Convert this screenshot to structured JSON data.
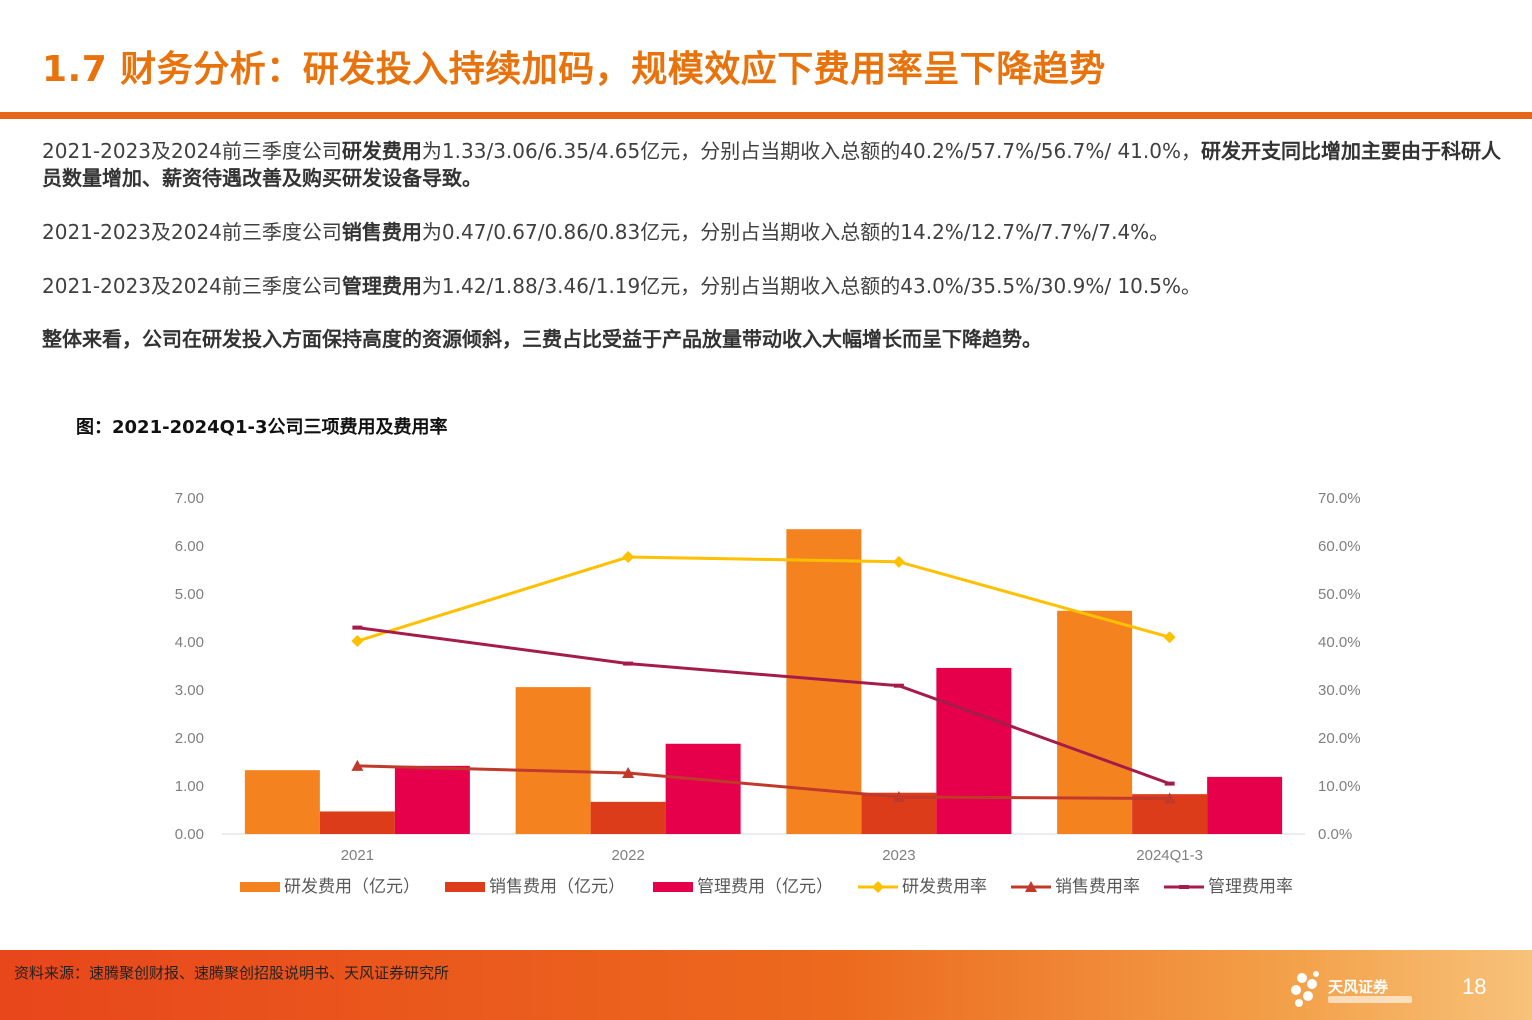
{
  "header": {
    "title": "1.7 财务分析：研发投入持续加码，规模效应下费用率呈下降趋势"
  },
  "paragraphs": {
    "p1": {
      "lead": "2021-2023及2024前三季度公司",
      "key": "研发费用",
      "mid": "为1.33/3.06/6.35/4.65亿元，分别占当期收入总额的40.2%/57.7%/56.7%/  41.0%，",
      "tail": "研发开支同比增加主要由于科研人员数量增加、薪资待遇改善及购买研发设备导致。"
    },
    "p2": {
      "lead": "2021-2023及2024前三季度公司",
      "key": "销售费用",
      "mid": "为0.47/0.67/0.86/0.83亿元，分别占当期收入总额的14.2%/12.7%/7.7%/7.4%。"
    },
    "p3": {
      "lead": "2021-2023及2024前三季度公司",
      "key": "管理费用",
      "mid": "为1.42/1.88/3.46/1.19亿元，分别占当期收入总额的43.0%/35.5%/30.9%/  10.5%。"
    },
    "p4": "整体来看，公司在研发投入方面保持高度的资源倾斜，三费占比受益于产品放量带动收入大幅增长而呈下降趋势。"
  },
  "chart_title": "图：2021-2024Q1-3公司三项费用及费用率",
  "chart_data": {
    "type": "bar",
    "categories": [
      "2021",
      "2022",
      "2023",
      "2024Q1-3"
    ],
    "series": [
      {
        "name": "研发费用（亿元）",
        "kind": "bar",
        "axis": "left",
        "color": "#F4821F",
        "values": [
          1.33,
          3.06,
          6.35,
          4.65
        ]
      },
      {
        "name": "销售费用（亿元）",
        "kind": "bar",
        "axis": "left",
        "color": "#DC3C1A",
        "values": [
          0.47,
          0.67,
          0.86,
          0.83
        ]
      },
      {
        "name": "管理费用（亿元）",
        "kind": "bar",
        "axis": "left",
        "color": "#E6004C",
        "values": [
          1.42,
          1.88,
          3.46,
          1.19
        ]
      },
      {
        "name": "研发费用率",
        "kind": "line",
        "axis": "right",
        "marker": "diamond",
        "color": "#FFC000",
        "values": [
          40.2,
          57.7,
          56.7,
          41.0
        ]
      },
      {
        "name": "销售费用率",
        "kind": "line",
        "axis": "right",
        "marker": "triangle",
        "color": "#C0392B",
        "values": [
          14.2,
          12.7,
          7.7,
          7.4
        ]
      },
      {
        "name": "管理费用率",
        "kind": "line",
        "axis": "right",
        "marker": "dash",
        "color": "#A51C4A",
        "values": [
          43.0,
          35.5,
          30.9,
          10.5
        ]
      }
    ],
    "left_axis": {
      "min": 0,
      "max": 7,
      "ticks": [
        "0.00",
        "1.00",
        "2.00",
        "3.00",
        "4.00",
        "5.00",
        "6.00",
        "7.00"
      ]
    },
    "right_axis": {
      "min": 0,
      "max": 70,
      "ticks": [
        "0.0%",
        "10.0%",
        "20.0%",
        "30.0%",
        "40.0%",
        "50.0%",
        "60.0%",
        "70.0%"
      ]
    },
    "grid": false,
    "legend": "bottom"
  },
  "footer": {
    "source": "资料来源：速腾聚创财报、速腾聚创招股说明书、天风证券研究所",
    "logo_text": "天风证券",
    "page_number": "18"
  }
}
